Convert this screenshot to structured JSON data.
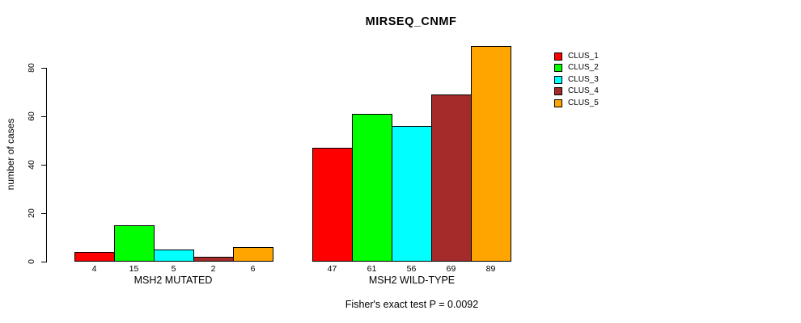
{
  "title": "MIRSEQ_CNMF",
  "subtitle": "Fisher's exact test P = 0.0092",
  "ylabel": "number of cases",
  "chart_data": {
    "type": "bar",
    "grouped": true,
    "categories": [
      "MSH2 MUTATED",
      "MSH2 WILD-TYPE"
    ],
    "series": [
      {
        "name": "CLUS_1",
        "color": "#FF0000",
        "values": [
          4,
          47
        ]
      },
      {
        "name": "CLUS_2",
        "color": "#00FF00",
        "values": [
          15,
          61
        ]
      },
      {
        "name": "CLUS_3",
        "color": "#00FFFF",
        "values": [
          5,
          56
        ]
      },
      {
        "name": "CLUS_4",
        "color": "#A52A2A",
        "values": [
          2,
          69
        ]
      },
      {
        "name": "CLUS_5",
        "color": "#FFA500",
        "values": [
          6,
          89
        ]
      }
    ],
    "groups": [
      {
        "label": "MSH2 MUTATED",
        "values": [
          4,
          15,
          5,
          2,
          6
        ]
      },
      {
        "label": "MSH2 WILD-TYPE",
        "values": [
          47,
          61,
          56,
          69,
          89
        ]
      }
    ],
    "bar_value_labels_shown": true,
    "yticks": [
      0,
      20,
      40,
      60,
      80
    ],
    "ylim": [
      0,
      80
    ],
    "xlabel": "",
    "ylabel": "number of cases",
    "grid": false,
    "legend_position": "right",
    "bar_border_color": "#000000",
    "background_color": "#FFFFFF"
  },
  "legend": {
    "items": [
      {
        "label": "CLUS_1",
        "color": "#FF0000"
      },
      {
        "label": "CLUS_2",
        "color": "#00FF00"
      },
      {
        "label": "CLUS_3",
        "color": "#00FFFF"
      },
      {
        "label": "CLUS_4",
        "color": "#A52A2A"
      },
      {
        "label": "CLUS_5",
        "color": "#FFA500"
      }
    ]
  }
}
